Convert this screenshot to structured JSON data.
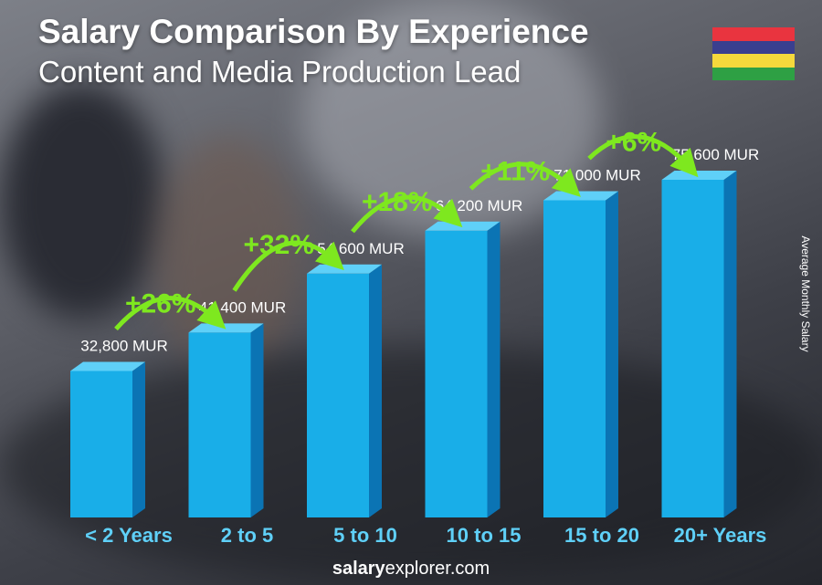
{
  "header": {
    "title": "Salary Comparison By Experience",
    "subtitle": "Content and Media Production Lead"
  },
  "flag": {
    "colors": [
      "#e9343f",
      "#3a3f8f",
      "#f5d93c",
      "#2ea044"
    ]
  },
  "footer": {
    "brand_bold": "salary",
    "brand_rest": "explorer.com"
  },
  "chart_data": {
    "type": "bar",
    "categories": [
      "< 2 Years",
      "2 to 5",
      "5 to 10",
      "10 to 15",
      "15 to 20",
      "20+ Years"
    ],
    "values": [
      32800,
      41400,
      54600,
      64200,
      71000,
      75600
    ],
    "value_labels": [
      "32,800 MUR",
      "41,400 MUR",
      "54,600 MUR",
      "64,200 MUR",
      "71,000 MUR",
      "75,600 MUR"
    ],
    "changes": [
      "+26%",
      "+32%",
      "+18%",
      "+11%",
      "+6%"
    ],
    "ylabel": "Average Monthly Salary",
    "unit": "MUR",
    "ylim": [
      0,
      75600
    ],
    "colors": {
      "bar_front": "#19aee8",
      "bar_side": "#0b74b4",
      "bar_top": "#5fd0f8",
      "change": "#7ee81f",
      "category": "#5fd0f8"
    }
  }
}
